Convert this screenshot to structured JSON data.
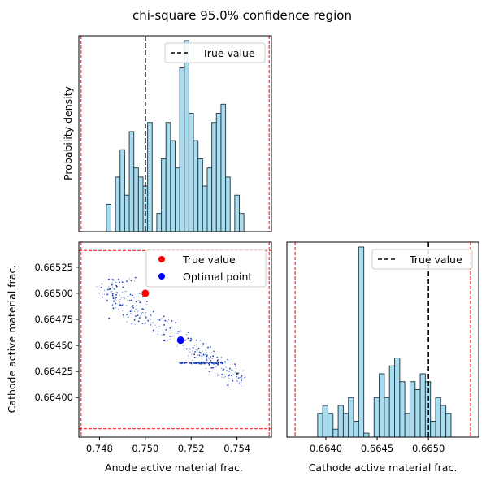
{
  "figure": {
    "title": "chi-square 95.0% confidence region"
  },
  "colors": {
    "hist_fill": "#a8dcef",
    "hist_edge": "#2b4250",
    "true_marker": "#ff0000",
    "optimal_marker": "#0000ff",
    "bound_line": "#ff0000",
    "true_line": "#000000",
    "scatter_dark": "#1a3fb5",
    "scatter_light": "#8fa8e0"
  },
  "chart_data": [
    {
      "id": "anode-hist",
      "type": "bar",
      "ylabel": "Probability density",
      "xlim": [
        0.7471,
        0.7555
      ],
      "true_value": 0.75,
      "bounds": [
        0.7472,
        0.7554
      ],
      "bin_edges": [
        0.7483,
        0.7485,
        0.7487,
        0.7489,
        0.7491,
        0.7493,
        0.7495,
        0.7497,
        0.7499,
        0.7501,
        0.7503,
        0.7505,
        0.7507,
        0.7509,
        0.7511,
        0.7513,
        0.7515,
        0.7517,
        0.7519,
        0.7521,
        0.7523,
        0.7525,
        0.7527,
        0.7529,
        0.7531,
        0.7533,
        0.7535,
        0.7537,
        0.7539,
        0.7541,
        0.7543
      ],
      "counts": [
        3,
        0,
        6,
        9,
        4,
        11,
        7,
        6,
        5,
        12,
        0,
        2,
        8,
        12,
        10,
        7,
        18,
        21,
        13,
        10,
        8,
        5,
        7,
        12,
        13,
        14,
        6,
        0,
        4,
        2
      ],
      "legend": [
        "True value"
      ]
    },
    {
      "id": "joint-scatter",
      "type": "scatter",
      "xlabel": "Anode active material frac.",
      "ylabel": "Cathode active material frac.",
      "xlim": [
        0.7471,
        0.7555
      ],
      "ylim": [
        0.66362,
        0.66549
      ],
      "xticks": [
        "0.748",
        "0.750",
        "0.752",
        "0.754"
      ],
      "yticks": [
        "0.66400",
        "0.66425",
        "0.66450",
        "0.66475",
        "0.66500",
        "0.66525"
      ],
      "true_point": [
        0.75,
        0.665
      ],
      "optimal_point": [
        0.75154,
        0.66455
      ],
      "bounds_x": [
        0.7472,
        0.7554
      ],
      "bounds_y": [
        0.6637,
        0.66541
      ],
      "legend": [
        "True value",
        "Optimal point"
      ]
    },
    {
      "id": "cathode-hist",
      "type": "bar",
      "xlabel": "Cathode active material frac.",
      "xlim": [
        0.66362,
        0.66549
      ],
      "xticks": [
        "0.6640",
        "0.6645",
        "0.6650"
      ],
      "true_value": 0.665,
      "bounds": [
        0.6637,
        0.66541
      ],
      "bin_edges": [
        0.66392,
        0.66397,
        0.66402,
        0.66407,
        0.66412,
        0.66417,
        0.66422,
        0.66427,
        0.66432,
        0.66437,
        0.66442,
        0.66447,
        0.66452,
        0.66457,
        0.66462,
        0.66467,
        0.66472,
        0.66477,
        0.66482,
        0.66487,
        0.66492,
        0.66497,
        0.66502,
        0.66507,
        0.66512,
        0.66517,
        0.66522
      ],
      "counts": [
        3,
        4,
        3,
        1,
        4,
        3,
        5,
        2,
        24,
        0.5,
        0,
        5,
        8,
        5,
        9,
        10,
        7,
        3,
        7,
        6,
        8,
        7,
        2,
        5,
        4,
        3
      ],
      "legend": [
        "True value"
      ]
    }
  ]
}
